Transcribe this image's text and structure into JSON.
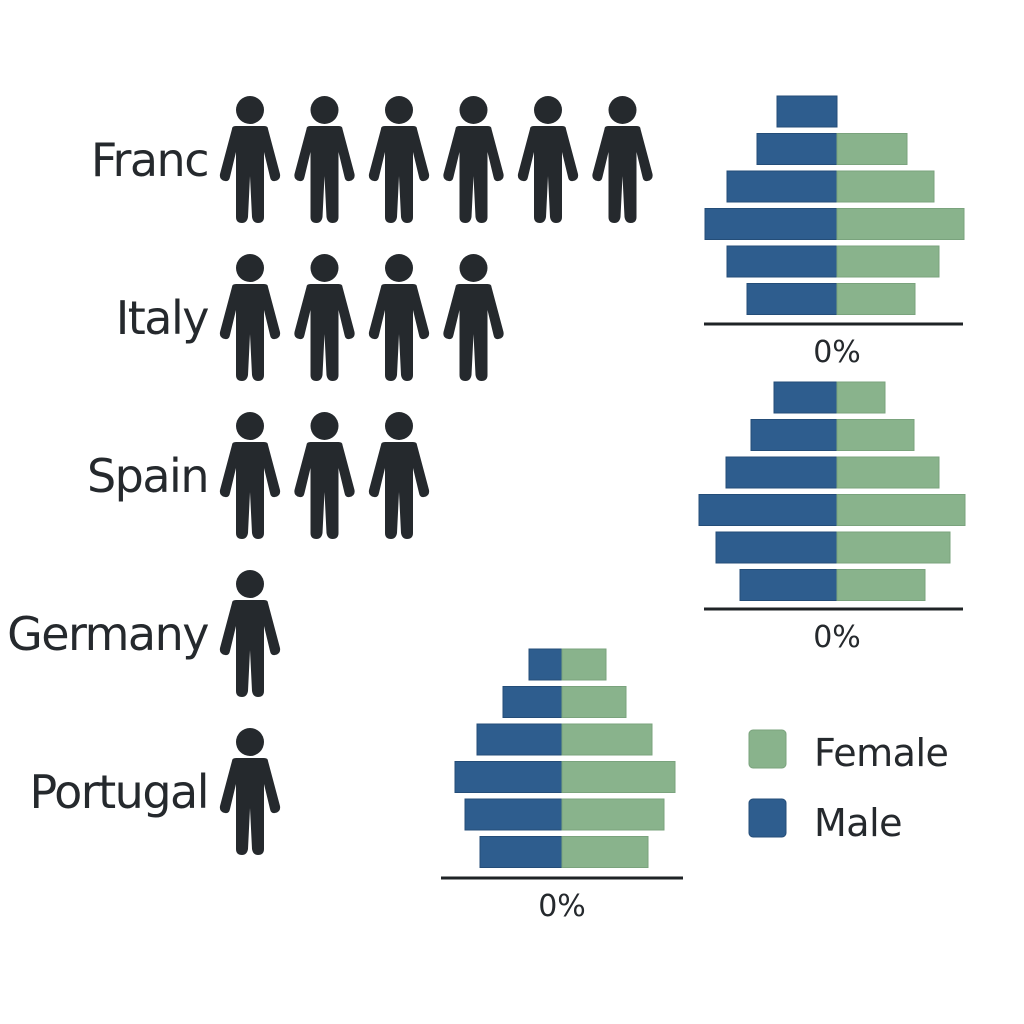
{
  "colors": {
    "male": "#2e5d8e",
    "female": "#89b38c",
    "icon": "#25292d",
    "axis": "#1f2326"
  },
  "icon_name": "person-icon",
  "chart_data": [
    {
      "type": "pictogram",
      "title": "",
      "categories": [
        "Franc",
        "Italy",
        "Spain",
        "Germany",
        "Portugal"
      ],
      "values": [
        6,
        4,
        3,
        1,
        1
      ]
    },
    {
      "type": "bar",
      "orientation": "horizontal-diverging",
      "title": "",
      "xlabel": "0%",
      "series": [
        {
          "name": "Male",
          "values": [
            -60,
            -80,
            -110,
            -132,
            -110,
            -90
          ]
        },
        {
          "name": "Female",
          "values": [
            0,
            70,
            97,
            127,
            102,
            78
          ]
        }
      ]
    },
    {
      "type": "bar",
      "orientation": "horizontal-diverging",
      "title": "",
      "xlabel": "0%",
      "series": [
        {
          "name": "Male",
          "values": [
            -63,
            -86,
            -111,
            -138,
            -121,
            -97
          ]
        },
        {
          "name": "Female",
          "values": [
            48,
            77,
            102,
            128,
            113,
            88
          ]
        }
      ]
    },
    {
      "type": "bar",
      "orientation": "horizontal-diverging",
      "title": "",
      "xlabel": "0%",
      "series": [
        {
          "name": "Male",
          "values": [
            -33,
            -59,
            -85,
            -107,
            -97,
            -82
          ]
        },
        {
          "name": "Female",
          "values": [
            44,
            64,
            90,
            113,
            102,
            86
          ]
        }
      ]
    }
  ],
  "legend": {
    "position": "bottom-right",
    "items": [
      {
        "label": "Female",
        "color_key": "female"
      },
      {
        "label": "Male",
        "color_key": "male"
      }
    ]
  }
}
